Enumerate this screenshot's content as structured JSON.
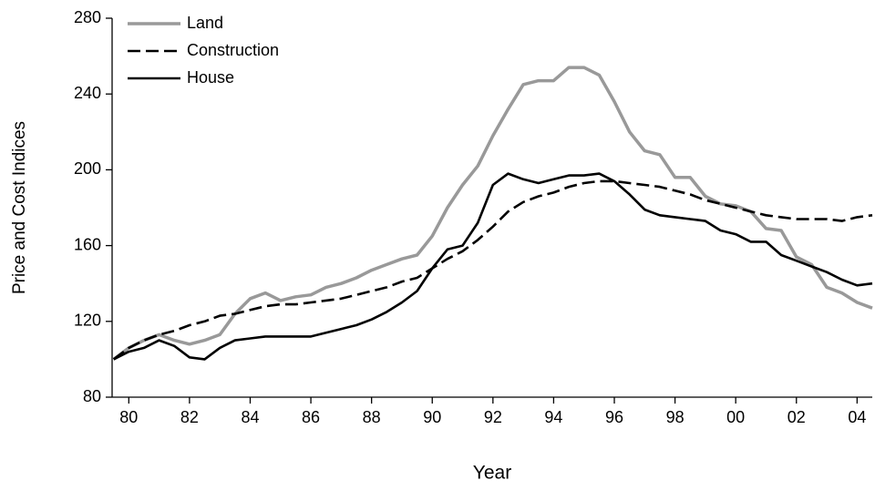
{
  "chart_data": {
    "type": "line",
    "x_label": "Year",
    "y_label": "Price and Cost Indices",
    "x": [
      1979.5,
      1980,
      1980.5,
      1981,
      1981.5,
      1982,
      1982.5,
      1983,
      1983.5,
      1984,
      1984.5,
      1985,
      1985.5,
      1986,
      1986.5,
      1987,
      1987.5,
      1988,
      1988.5,
      1989,
      1989.5,
      1990,
      1990.5,
      1991,
      1991.5,
      1992,
      1992.5,
      1993,
      1993.5,
      1994,
      1994.5,
      1995,
      1995.5,
      1996,
      1996.5,
      1997,
      1997.5,
      1998,
      1998.5,
      1999,
      1999.5,
      2000,
      2000.5,
      2001,
      2001.5,
      2002,
      2002.5,
      2003,
      2003.5,
      2004,
      2004.5
    ],
    "series": [
      {
        "name": "Land",
        "color": "#999999",
        "dashed": false,
        "values": [
          100,
          106,
          110,
          113,
          110,
          108,
          110,
          113,
          124,
          132,
          135,
          131,
          133,
          134,
          138,
          140,
          143,
          147,
          150,
          153,
          155,
          165,
          180,
          192,
          202,
          218,
          232,
          245,
          247,
          247,
          254,
          254,
          250,
          236,
          220,
          210,
          208,
          196,
          196,
          186,
          182,
          181,
          178,
          169,
          168,
          154,
          150,
          138,
          135,
          130,
          127
        ]
      },
      {
        "name": "Construction",
        "color": "#000000",
        "dashed": true,
        "values": [
          100,
          106,
          110,
          113,
          115,
          118,
          120,
          123,
          124,
          126,
          128,
          129,
          129,
          130,
          131,
          132,
          134,
          136,
          138,
          141,
          143,
          148,
          153,
          157,
          163,
          170,
          178,
          183,
          186,
          188,
          191,
          193,
          194,
          194,
          193,
          192,
          191,
          189,
          187,
          184,
          182,
          180,
          178,
          176,
          175,
          174,
          174,
          174,
          173,
          175,
          176
        ]
      },
      {
        "name": "House",
        "color": "#000000",
        "dashed": false,
        "values": [
          100,
          104,
          106,
          110,
          107,
          101,
          100,
          106,
          110,
          111,
          112,
          112,
          112,
          112,
          114,
          116,
          118,
          121,
          125,
          130,
          136,
          148,
          158,
          160,
          172,
          192,
          198,
          195,
          193,
          195,
          197,
          197,
          198,
          194,
          187,
          179,
          176,
          175,
          174,
          173,
          168,
          166,
          162,
          162,
          155,
          152,
          149,
          146,
          142,
          139,
          140
        ]
      }
    ],
    "xlim": [
      1979.45,
      2004.5
    ],
    "xticks": [
      {
        "value": 1980,
        "label": "80"
      },
      {
        "value": 1982,
        "label": "82"
      },
      {
        "value": 1984,
        "label": "84"
      },
      {
        "value": 1986,
        "label": "86"
      },
      {
        "value": 1988,
        "label": "88"
      },
      {
        "value": 1990,
        "label": "90"
      },
      {
        "value": 1992,
        "label": "92"
      },
      {
        "value": 1994,
        "label": "94"
      },
      {
        "value": 1996,
        "label": "96"
      },
      {
        "value": 1998,
        "label": "98"
      },
      {
        "value": 2000,
        "label": "00"
      },
      {
        "value": 2002,
        "label": "02"
      },
      {
        "value": 2004,
        "label": "04"
      }
    ],
    "ylim": [
      80,
      280
    ],
    "yticks": [
      80,
      120,
      160,
      200,
      240,
      280
    ],
    "grid": false,
    "legend": "upper left"
  }
}
